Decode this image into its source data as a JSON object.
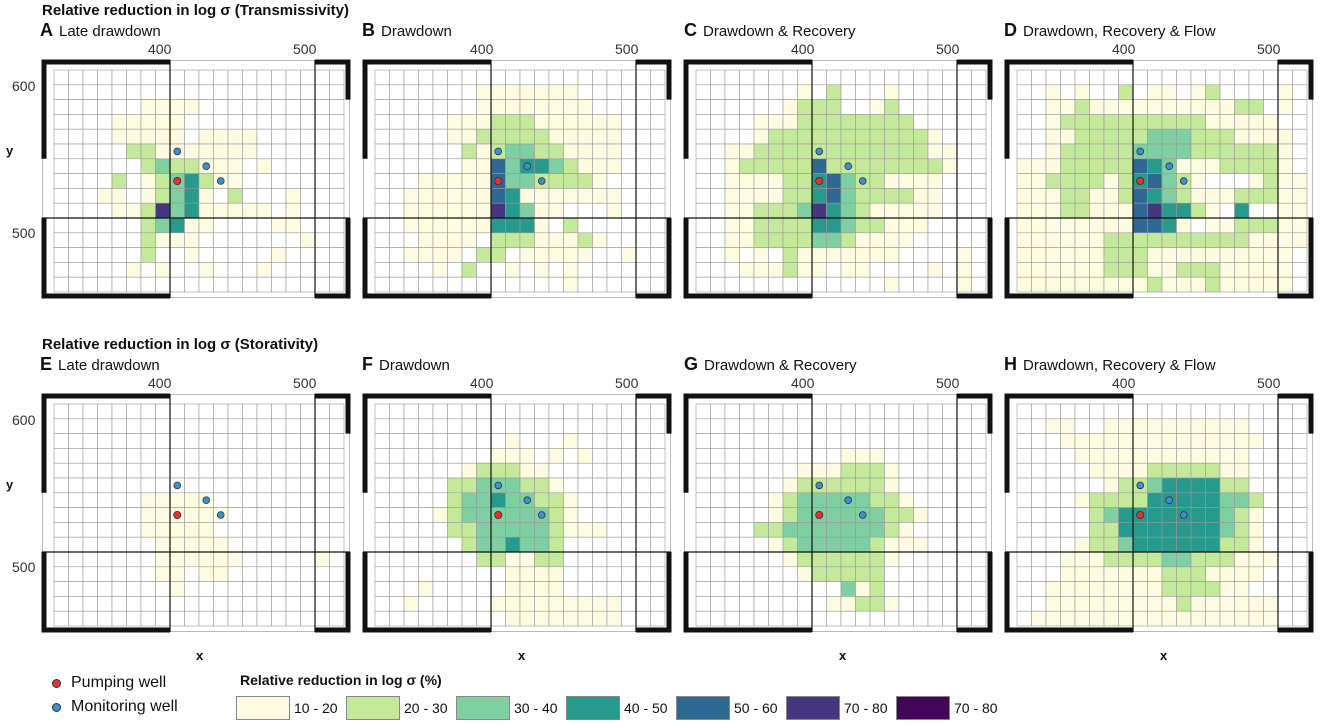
{
  "chart_data": {
    "type": "heatmap",
    "row_titles": [
      "Relative reduction in log σ (Transmissivity)",
      "Relative reduction in log σ (Storativity)"
    ],
    "x_ticks": [
      "400",
      "500"
    ],
    "y_ticks": [
      "600",
      "500"
    ],
    "xlabel": "x",
    "ylabel": "y",
    "grid_cells": [
      20,
      15
    ],
    "pumping_well_cell": [
      8,
      7
    ],
    "monitoring_well_cells": [
      [
        8,
        9
      ],
      [
        10,
        8
      ],
      [
        11,
        7
      ]
    ],
    "panels": [
      {
        "letter": "A",
        "title": "Late drawdown",
        "rows": [
          "....................",
          "....................",
          "......1111..........",
          "....11111...........",
          "....11111.1111......",
          ".....221111111......",
          "......2322111.1.....",
          "....2.1234211.......",
          "...11.12341.2...1...",
          "....11263411111.1...",
          "......23411....11...",
          "......2111.......1..",
          "......2..1.....1....",
          ".....1.1..1...1.....",
          "...................."
        ]
      },
      {
        "letter": "B",
        "title": "Drawdown",
        "rows": [
          "....................",
          ".......1111111......",
          ".......11111111.....",
          ".....111222111111...",
          ".....112222211111...",
          "......21233221111...",
          "......11534432111...",
          "...1111153322221....",
          "..111111541111111...",
          "..11111164311...1...",
          "..1111114441.2......",
          "...1111.22211121....",
          "..1111.22.11111..1..",
          "....1.2..1.1.1......",
          ".............1......"
        ]
      },
      {
        "letter": "C",
        "title": "Drawdown & Recovery",
        "rows": [
          "....................",
          ".......1.2...1......",
          "......1222..12......",
          "....11122222222.....",
          "....1222222222221...",
          "..1122222222222211..",
          "..1222225222222221..",
          "..111122453221111...",
          "..111122453222211...",
          "..112223643211111...",
          "..11222244322111....",
          "..1122223321111.....",
          "..1.1.21111111....1.",
          "...111211.11....1.1.",
          ".............1....1."
        ]
      },
      {
        "letter": "D",
        "title": "Drawdown, Recovery & Flow",
        "rows": [
          "....................",
          "..1.1..2.11.12....1.",
          "..112111111111122.1.",
          "..1222222222211111..",
          "..11222223332221111.",
          "..12222233332222221.",
          "1112222254311122221.",
          "1122221245321...1211",
          "11122112543211122211",
          "11122111564421.4..11",
          "111111115541.1122211",
          "11111122222222221111",
          "1111112221111111111.",
          "1111112221122211111.",
          "1111111112111211111."
        ]
      },
      {
        "letter": "E",
        "title": "Late drawdown",
        "rows": [
          "....................",
          "....................",
          "....................",
          "....................",
          "....................",
          "....................",
          "......11111.........",
          "......111111........",
          "......11111.........",
          ".......11111........",
          ".......111111.....1.",
          ".......11.11........",
          "........1...........",
          "....................",
          "...................."
        ]
      },
      {
        "letter": "F",
        "title": "Drawdown",
        "rows": [
          "....................",
          "....................",
          ".........1...1......",
          "........111.1.1.....",
          "......122211........",
          ".....22333221.......",
          ".....233433221......",
          "....1233333321......",
          ".....22333332111....",
          "......2334332.......",
          ".......221122.......",
          ".........1111.......",
          "...1.....1111.......",
          "..1.....111111111...",
          ".........11111111..."
        ]
      },
      {
        "letter": "G",
        "title": "Drawdown & Recovery",
        "rows": [
          "....................",
          "....................",
          "....................",
          "..........111.......",
          ".......1112221......",
          "......12222221......",
          ".....1233333221.....",
          ".....12333333221....",
          "....22333333321.....",
          ".....12333332111....",
          "......12222221......",
          ".......122222.......",
          "..........312.......",
          ".........11221......",
          "...................."
        ]
      },
      {
        "letter": "H",
        "title": "Drawdown, Recovery & Flow",
        "rows": [
          "....................",
          "..11..1111111111....",
          "...11111111111111...",
          "....111111111111....",
          ".....11112222211....",
          "......1223444422....",
          "....1222244444332...",
          ".....234444444321...",
          ".....224444444321...",
          "....1223444444221...",
          "...111222233222111..",
          "...11111112221111...",
          "..11111111222211....",
          "..1111111112111111..",
          ".11111111111111111.."
        ]
      }
    ],
    "legend": {
      "title": "Relative reduction in log σ (%)",
      "classes": [
        {
          "label": "10 - 20",
          "color": "#fefce0"
        },
        {
          "label": "20 - 30",
          "color": "#c4e99a"
        },
        {
          "label": "30 - 40",
          "color": "#7ecfa2"
        },
        {
          "label": "40 - 50",
          "color": "#279a8e"
        },
        {
          "label": "50 - 60",
          "color": "#2f6893"
        },
        {
          "label": "70 - 80",
          "color": "#45367f"
        },
        {
          "label": "70 - 80",
          "color": "#420557"
        }
      ],
      "wells": [
        {
          "label": "Pumping well",
          "color": "#e8312f"
        },
        {
          "label": "Monitoring well",
          "color": "#3d8fd3"
        }
      ]
    }
  }
}
